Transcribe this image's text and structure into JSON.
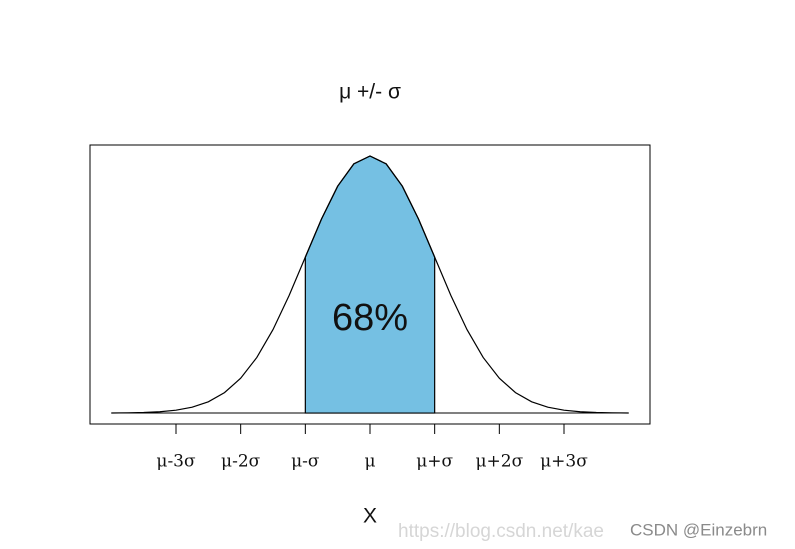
{
  "chart_data": {
    "type": "line",
    "title": "μ +/- σ",
    "x_label": "X",
    "annotation": "68%",
    "x": [
      -4,
      -3.75,
      -3.5,
      -3.25,
      -3,
      -2.75,
      -2.5,
      -2.25,
      -2,
      -1.75,
      -1.5,
      -1.25,
      -1,
      -0.75,
      -0.5,
      -0.25,
      0,
      0.25,
      0.5,
      0.75,
      1,
      1.25,
      1.5,
      1.75,
      2,
      2.25,
      2.5,
      2.75,
      3,
      3.25,
      3.5,
      3.75,
      4
    ],
    "values": [
      0.0001,
      0.0004,
      0.0009,
      0.002,
      0.0044,
      0.0091,
      0.0175,
      0.0317,
      0.054,
      0.0863,
      0.1295,
      0.1826,
      0.242,
      0.3011,
      0.3521,
      0.3867,
      0.3989,
      0.3867,
      0.3521,
      0.3011,
      0.242,
      0.1826,
      0.1295,
      0.0863,
      0.054,
      0.0317,
      0.0175,
      0.0091,
      0.0044,
      0.002,
      0.0009,
      0.0004,
      0.0001
    ],
    "color": "#000000",
    "fill_range": [
      -1,
      1
    ],
    "fill_color": "#75c0e3",
    "xlim": [
      -4.33,
      4.33
    ],
    "ylim": [
      -0.017,
      0.416
    ],
    "xticks": [
      {
        "value": -3,
        "label": "μ-3σ"
      },
      {
        "value": -2,
        "label": "μ-2σ"
      },
      {
        "value": -1,
        "label": "μ-σ"
      },
      {
        "value": 0,
        "label": "μ"
      },
      {
        "value": 1,
        "label": "μ+σ"
      },
      {
        "value": 2,
        "label": "μ+2σ"
      },
      {
        "value": 3,
        "label": "μ+3σ"
      }
    ],
    "watermark": [
      "https://blog.csdn.net/kae",
      "CSDN @Einzebrn"
    ]
  }
}
